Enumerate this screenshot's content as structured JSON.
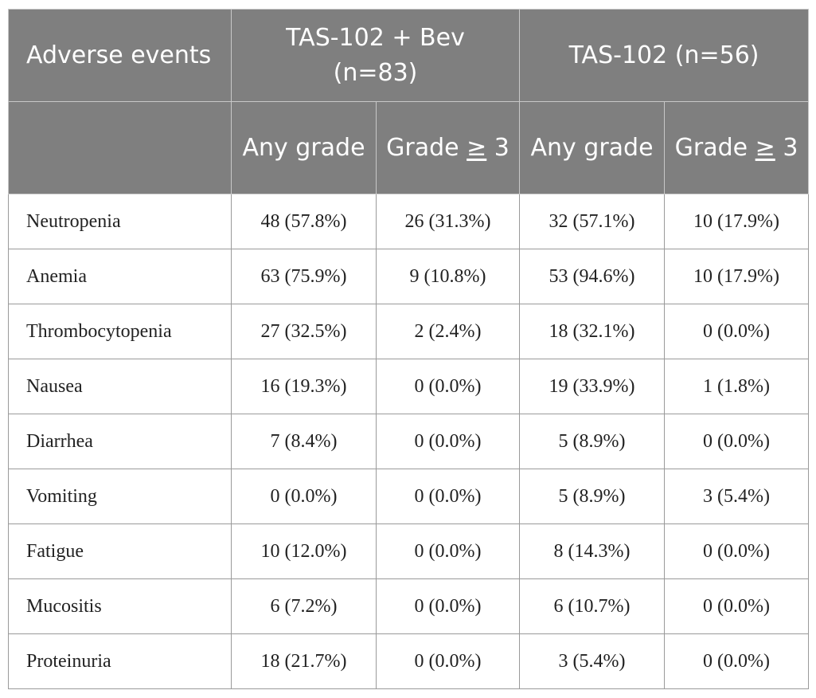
{
  "header": {
    "adverse_events": "Adverse events",
    "group1": "TAS-102 + Bev (n=83)",
    "group2": "TAS-102 (n=56)",
    "any_grade": "Any grade",
    "grade_prefix": "Grade ",
    "grade_ge": "≥",
    "grade_suffix": " 3"
  },
  "rows": [
    {
      "event": "Neutropenia",
      "g1_any": "48 (57.8%)",
      "g1_g3": "26 (31.3%)",
      "g2_any": "32 (57.1%)",
      "g2_g3": "10 (17.9%)"
    },
    {
      "event": "Anemia",
      "g1_any": "63 (75.9%)",
      "g1_g3": "9 (10.8%)",
      "g2_any": "53 (94.6%)",
      "g2_g3": "10 (17.9%)"
    },
    {
      "event": "Thrombocytopenia",
      "g1_any": "27 (32.5%)",
      "g1_g3": "2 (2.4%)",
      "g2_any": "18 (32.1%)",
      "g2_g3": "0 (0.0%)"
    },
    {
      "event": "Nausea",
      "g1_any": "16 (19.3%)",
      "g1_g3": "0 (0.0%)",
      "g2_any": "19 (33.9%)",
      "g2_g3": "1 (1.8%)"
    },
    {
      "event": "Diarrhea",
      "g1_any": "7 (8.4%)",
      "g1_g3": "0 (0.0%)",
      "g2_any": "5 (8.9%)",
      "g2_g3": "0 (0.0%)"
    },
    {
      "event": "Vomiting",
      "g1_any": "0 (0.0%)",
      "g1_g3": "0 (0.0%)",
      "g2_any": "5 (8.9%)",
      "g2_g3": "3 (5.4%)"
    },
    {
      "event": "Fatigue",
      "g1_any": "10 (12.0%)",
      "g1_g3": "0 (0.0%)",
      "g2_any": "8 (14.3%)",
      "g2_g3": "0 (0.0%)"
    },
    {
      "event": "Mucositis",
      "g1_any": "6 (7.2%)",
      "g1_g3": "0 (0.0%)",
      "g2_any": "6 (10.7%)",
      "g2_g3": "0 (0.0%)"
    },
    {
      "event": "Proteinuria",
      "g1_any": "18 (21.7%)",
      "g1_g3": "0 (0.0%)",
      "g2_any": "3 (5.4%)",
      "g2_g3": "0 (0.0%)"
    }
  ]
}
